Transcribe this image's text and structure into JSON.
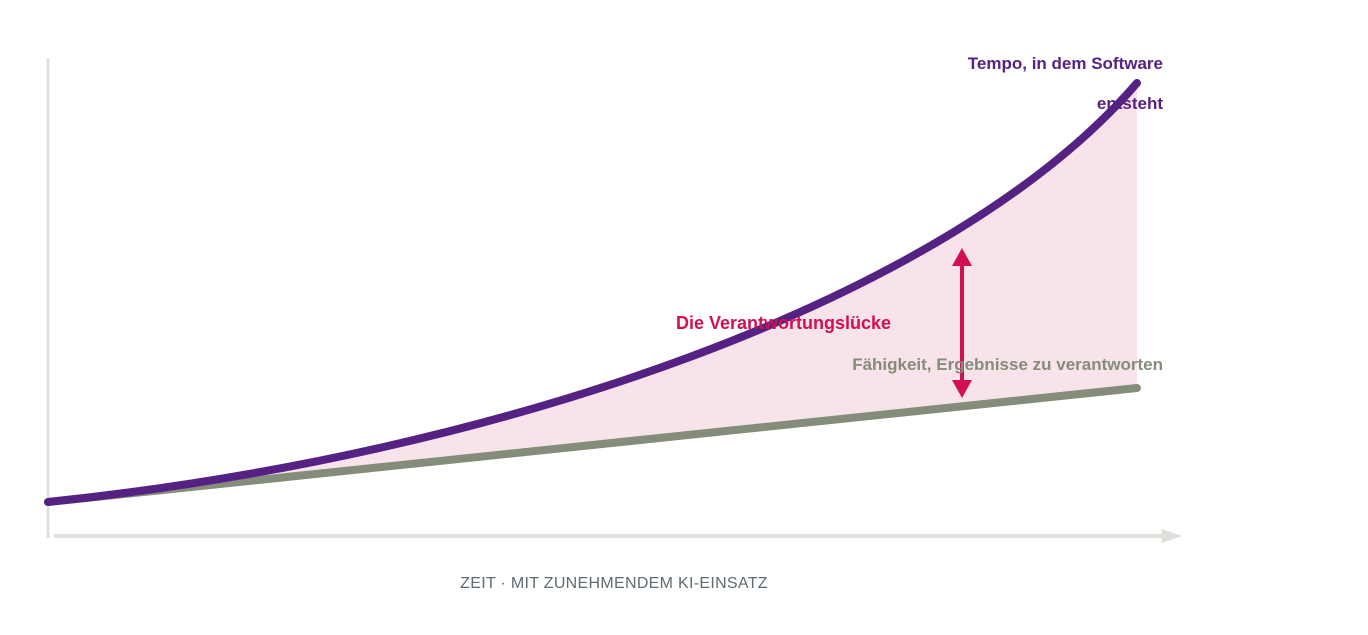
{
  "colors": {
    "tempo": "#552283",
    "ability": "#838d79",
    "gap": "#d1104f",
    "gap_fill": "#f8e3ea",
    "axis": "#e0e0da",
    "x_label": "#5f6b73"
  },
  "labels": {
    "tempo_line1": "Tempo, in dem Software",
    "tempo_line2": "entsteht",
    "gap": "Die Verantwortungslücke",
    "ability": "Fähigkeit, Ergebnisse zu verantworten",
    "x_axis": "ZEIT · MIT ZUNEHMENDEM KI-EINSATZ"
  }
}
